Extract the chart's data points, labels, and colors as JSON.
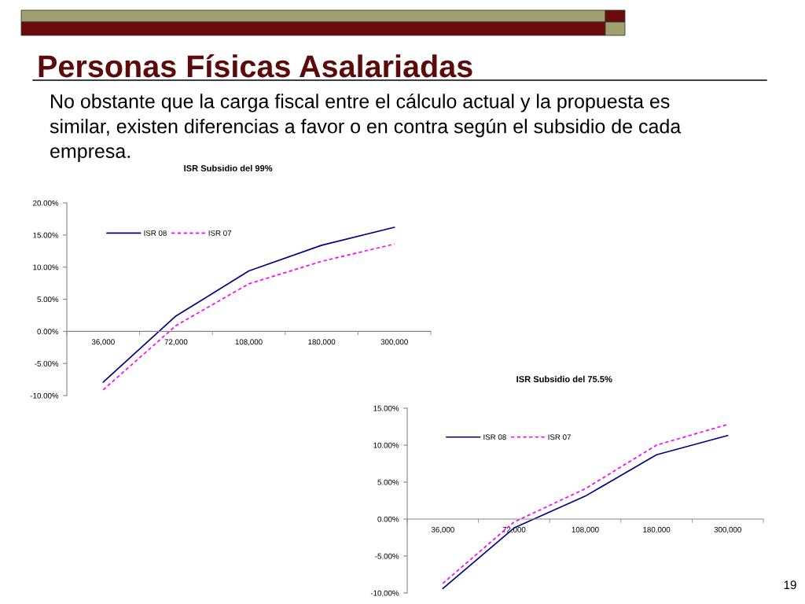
{
  "chart_data": [
    {
      "type": "other",
      "title": "Personas Físicas Asalariadas",
      "subtitle": "No obstante que la carga fiscal entre el cálculo actual y la propuesta es similar, existen diferencias a favor o en contra según el subsidio de cada empresa.",
      "annotations": [
        "19"
      ]
    },
    {
      "type": "line",
      "title": "ISR Subsidio del 99%",
      "categories": [
        "36,000",
        "72,000",
        "108,000",
        "180,000",
        "300,000"
      ],
      "series": [
        {
          "name": "ISR 08",
          "color": "#000080",
          "line_style": "solid",
          "values": [
            -7.9,
            2.4,
            9.4,
            13.4,
            16.2
          ]
        },
        {
          "name": "ISR 07",
          "color": "#ff00ff",
          "line_style": "dashed",
          "values": [
            -9.1,
            0.9,
            7.4,
            10.9,
            13.6
          ]
        }
      ],
      "ylim": [
        -10,
        20
      ],
      "yticks": [
        {
          "value": -10,
          "label": "-10.00%"
        },
        {
          "value": -5,
          "label": "-5.00%"
        },
        {
          "value": 0,
          "label": "0.00%"
        },
        {
          "value": 5,
          "label": "5.00%"
        },
        {
          "value": 10,
          "label": "10.00%"
        },
        {
          "value": 15,
          "label": "15.00%"
        },
        {
          "value": 20,
          "label": "20.00%"
        }
      ],
      "legend": "top left"
    },
    {
      "type": "line",
      "title": "ISR Subsidio del 75.5%",
      "categories": [
        "36,000",
        "72,000",
        "108,000",
        "180,000",
        "300,000"
      ],
      "series": [
        {
          "name": "ISR 08",
          "color": "#000080",
          "line_style": "solid",
          "values": [
            -9.4,
            -1.2,
            3.1,
            8.7,
            11.3
          ]
        },
        {
          "name": "ISR 07",
          "color": "#ff00ff",
          "line_style": "dashed",
          "values": [
            -8.7,
            -0.4,
            4.1,
            10.0,
            12.8
          ]
        }
      ],
      "ylim": [
        -10,
        15
      ],
      "yticks": [
        {
          "value": -10,
          "label": "-10.00%"
        },
        {
          "value": -5,
          "label": "-5.00%"
        },
        {
          "value": 0,
          "label": "0.00%"
        },
        {
          "value": 5,
          "label": "5.00%"
        },
        {
          "value": 10,
          "label": "10.00%"
        },
        {
          "value": 15,
          "label": "15.00%"
        }
      ],
      "legend": "top left"
    }
  ]
}
